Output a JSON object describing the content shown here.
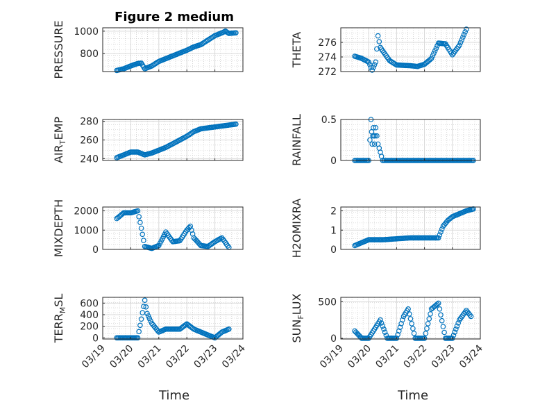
{
  "figure": {
    "title": "Figure 2 medium",
    "xlabel": "Time",
    "date_ticks": [
      "03/19",
      "03/20",
      "03/21",
      "03/22",
      "03/23",
      "03/24"
    ],
    "marker_color": "#0072BD",
    "grid_color": "#bfbfbf",
    "axes_color": "#262626"
  },
  "chart_data": [
    {
      "type": "scatter",
      "name": "PRESSURE",
      "ylabel": "PRESSURE",
      "xlim": [
        "2020-03-19",
        "2020-03-24"
      ],
      "ylim": [
        640,
        1030
      ],
      "yticks": [
        800,
        1000
      ],
      "grid": true,
      "minor_grid": true,
      "points": [
        [
          "03/19 12:00",
          650
        ],
        [
          "03/19 18:00",
          665
        ],
        [
          "03/20 00:00",
          690
        ],
        [
          "03/20 06:00",
          712
        ],
        [
          "03/20 09:00",
          715
        ],
        [
          "03/20 12:00",
          665
        ],
        [
          "03/20 18:00",
          690
        ],
        [
          "03/21 00:00",
          730
        ],
        [
          "03/21 06:00",
          755
        ],
        [
          "03/21 12:00",
          780
        ],
        [
          "03/21 18:00",
          805
        ],
        [
          "03/22 00:00",
          830
        ],
        [
          "03/22 06:00",
          860
        ],
        [
          "03/22 12:00",
          880
        ],
        [
          "03/22 18:00",
          920
        ],
        [
          "03/23 00:00",
          960
        ],
        [
          "03/23 06:00",
          985
        ],
        [
          "03/23 09:00",
          1000
        ],
        [
          "03/23 12:00",
          980
        ],
        [
          "03/23 18:00",
          985
        ]
      ]
    },
    {
      "type": "scatter",
      "name": "THETA",
      "ylabel": "THETA",
      "xlim": [
        "2020-03-19",
        "2020-03-24"
      ],
      "ylim": [
        272,
        278
      ],
      "yticks": [
        272,
        274,
        276
      ],
      "grid": true,
      "minor_grid": true,
      "points": [
        [
          "03/19 12:00",
          274.1
        ],
        [
          "03/19 18:00",
          273.8
        ],
        [
          "03/20 00:00",
          273.3
        ],
        [
          "03/20 03:00",
          272.2
        ],
        [
          "03/20 06:00",
          273.3
        ],
        [
          "03/20 08:00",
          276.9
        ],
        [
          "03/20 10:00",
          275.3
        ],
        [
          "03/20 18:00",
          273.5
        ],
        [
          "03/21 00:00",
          272.9
        ],
        [
          "03/21 12:00",
          272.8
        ],
        [
          "03/21 18:00",
          272.7
        ],
        [
          "03/22 00:00",
          273.0
        ],
        [
          "03/22 06:00",
          273.8
        ],
        [
          "03/22 12:00",
          275.9
        ],
        [
          "03/22 18:00",
          275.8
        ],
        [
          "03/23 00:00",
          274.3
        ],
        [
          "03/23 06:00",
          275.6
        ],
        [
          "03/23 12:00",
          277.8
        ]
      ]
    },
    {
      "type": "scatter",
      "name": "AIR_TEMP",
      "ylabel": "AIR_TEMP",
      "xlim": [
        "2020-03-19",
        "2020-03-24"
      ],
      "ylim": [
        238,
        282
      ],
      "yticks": [
        240,
        260,
        280
      ],
      "grid": true,
      "minor_grid": true,
      "points": [
        [
          "03/19 12:00",
          241
        ],
        [
          "03/19 18:00",
          244
        ],
        [
          "03/20 00:00",
          247
        ],
        [
          "03/20 06:00",
          247
        ],
        [
          "03/20 12:00",
          244
        ],
        [
          "03/20 18:00",
          246
        ],
        [
          "03/21 00:00",
          249
        ],
        [
          "03/21 06:00",
          252
        ],
        [
          "03/21 12:00",
          256
        ],
        [
          "03/21 18:00",
          260
        ],
        [
          "03/22 00:00",
          264
        ],
        [
          "03/22 06:00",
          269
        ],
        [
          "03/22 12:00",
          272
        ],
        [
          "03/22 18:00",
          273
        ],
        [
          "03/23 00:00",
          274
        ],
        [
          "03/23 06:00",
          275
        ],
        [
          "03/23 12:00",
          276
        ],
        [
          "03/23 18:00",
          277
        ]
      ]
    },
    {
      "type": "scatter",
      "name": "RAINFALL",
      "ylabel": "RAINFALL",
      "xlim": [
        "2020-03-19",
        "2020-03-24"
      ],
      "ylim": [
        0,
        0.5
      ],
      "yticks": [
        0,
        0.5
      ],
      "grid": true,
      "minor_grid": true,
      "points": [
        [
          "03/19 12:00",
          0
        ],
        [
          "03/19 18:00",
          0
        ],
        [
          "03/20 00:00",
          0
        ],
        [
          "03/20 02:00",
          0.5
        ],
        [
          "03/20 03:00",
          0.2
        ],
        [
          "03/20 04:00",
          0.4
        ],
        [
          "03/20 05:00",
          0.2
        ],
        [
          "03/20 06:00",
          0.4
        ],
        [
          "03/20 08:00",
          0.2
        ],
        [
          "03/20 12:00",
          0
        ],
        [
          "03/21 00:00",
          0
        ],
        [
          "03/21 12:00",
          0
        ],
        [
          "03/22 00:00",
          0
        ],
        [
          "03/22 12:00",
          0
        ],
        [
          "03/23 00:00",
          0
        ],
        [
          "03/23 12:00",
          0
        ],
        [
          "03/23 18:00",
          0
        ]
      ]
    },
    {
      "type": "scatter",
      "name": "MIXDEPTH",
      "ylabel": "MIXDEPTH",
      "xlim": [
        "2020-03-19",
        "2020-03-24"
      ],
      "ylim": [
        0,
        2200
      ],
      "yticks": [
        0,
        1000,
        2000
      ],
      "grid": true,
      "minor_grid": true,
      "points": [
        [
          "03/19 12:00",
          1600
        ],
        [
          "03/19 18:00",
          1900
        ],
        [
          "03/20 00:00",
          1900
        ],
        [
          "03/20 06:00",
          2000
        ],
        [
          "03/20 09:00",
          1100
        ],
        [
          "03/20 12:00",
          150
        ],
        [
          "03/20 18:00",
          50
        ],
        [
          "03/21 00:00",
          200
        ],
        [
          "03/21 06:00",
          900
        ],
        [
          "03/21 12:00",
          400
        ],
        [
          "03/21 18:00",
          450
        ],
        [
          "03/22 00:00",
          1000
        ],
        [
          "03/22 03:00",
          1200
        ],
        [
          "03/22 06:00",
          600
        ],
        [
          "03/22 12:00",
          200
        ],
        [
          "03/22 18:00",
          150
        ],
        [
          "03/23 00:00",
          400
        ],
        [
          "03/23 06:00",
          600
        ],
        [
          "03/23 12:00",
          100
        ]
      ]
    },
    {
      "type": "scatter",
      "name": "H2OMIXRA",
      "ylabel": "H2OMIXRA",
      "xlim": [
        "2020-03-19",
        "2020-03-24"
      ],
      "ylim": [
        0,
        2.2
      ],
      "yticks": [
        0,
        1,
        2
      ],
      "grid": true,
      "minor_grid": true,
      "points": [
        [
          "03/19 12:00",
          0.2
        ],
        [
          "03/20 00:00",
          0.5
        ],
        [
          "03/20 12:00",
          0.5
        ],
        [
          "03/21 00:00",
          0.55
        ],
        [
          "03/21 12:00",
          0.6
        ],
        [
          "03/22 00:00",
          0.6
        ],
        [
          "03/22 12:00",
          0.6
        ],
        [
          "03/22 16:00",
          1.2
        ],
        [
          "03/22 20:00",
          1.5
        ],
        [
          "03/23 00:00",
          1.7
        ],
        [
          "03/23 12:00",
          2.0
        ],
        [
          "03/23 18:00",
          2.1
        ]
      ]
    },
    {
      "type": "scatter",
      "name": "TERR_MSL",
      "ylabel": "TERR_MSL",
      "xlim": [
        "2020-03-19",
        "2020-03-24"
      ],
      "ylim": [
        -20,
        700
      ],
      "yticks": [
        0,
        200,
        400,
        600
      ],
      "grid": true,
      "minor_grid": true,
      "points": [
        [
          "03/19 12:00",
          0
        ],
        [
          "03/19 18:00",
          0
        ],
        [
          "03/20 00:00",
          0
        ],
        [
          "03/20 06:00",
          0
        ],
        [
          "03/20 12:00",
          650
        ],
        [
          "03/20 14:00",
          420
        ],
        [
          "03/20 18:00",
          250
        ],
        [
          "03/21 00:00",
          100
        ],
        [
          "03/21 06:00",
          150
        ],
        [
          "03/21 12:00",
          150
        ],
        [
          "03/21 18:00",
          150
        ],
        [
          "03/22 00:00",
          240
        ],
        [
          "03/22 06:00",
          150
        ],
        [
          "03/22 12:00",
          100
        ],
        [
          "03/22 18:00",
          50
        ],
        [
          "03/23 00:00",
          0
        ],
        [
          "03/23 06:00",
          100
        ],
        [
          "03/23 12:00",
          150
        ]
      ]
    },
    {
      "type": "scatter",
      "name": "SUN_FLUX",
      "ylabel": "SUN_FLUX",
      "xlim": [
        "2020-03-19",
        "2020-03-24"
      ],
      "ylim": [
        -10,
        560
      ],
      "yticks": [
        0,
        500
      ],
      "grid": true,
      "minor_grid": true,
      "points": [
        [
          "03/19 12:00",
          100
        ],
        [
          "03/19 18:00",
          0
        ],
        [
          "03/20 00:00",
          0
        ],
        [
          "03/20 06:00",
          150
        ],
        [
          "03/20 10:00",
          250
        ],
        [
          "03/20 16:00",
          0
        ],
        [
          "03/21 00:00",
          0
        ],
        [
          "03/21 06:00",
          300
        ],
        [
          "03/21 10:00",
          400
        ],
        [
          "03/21 16:00",
          0
        ],
        [
          "03/22 00:00",
          0
        ],
        [
          "03/22 06:00",
          400
        ],
        [
          "03/22 12:00",
          480
        ],
        [
          "03/22 18:00",
          0
        ],
        [
          "03/23 00:00",
          0
        ],
        [
          "03/23 06:00",
          250
        ],
        [
          "03/23 12:00",
          380
        ],
        [
          "03/23 16:00",
          300
        ]
      ]
    }
  ]
}
